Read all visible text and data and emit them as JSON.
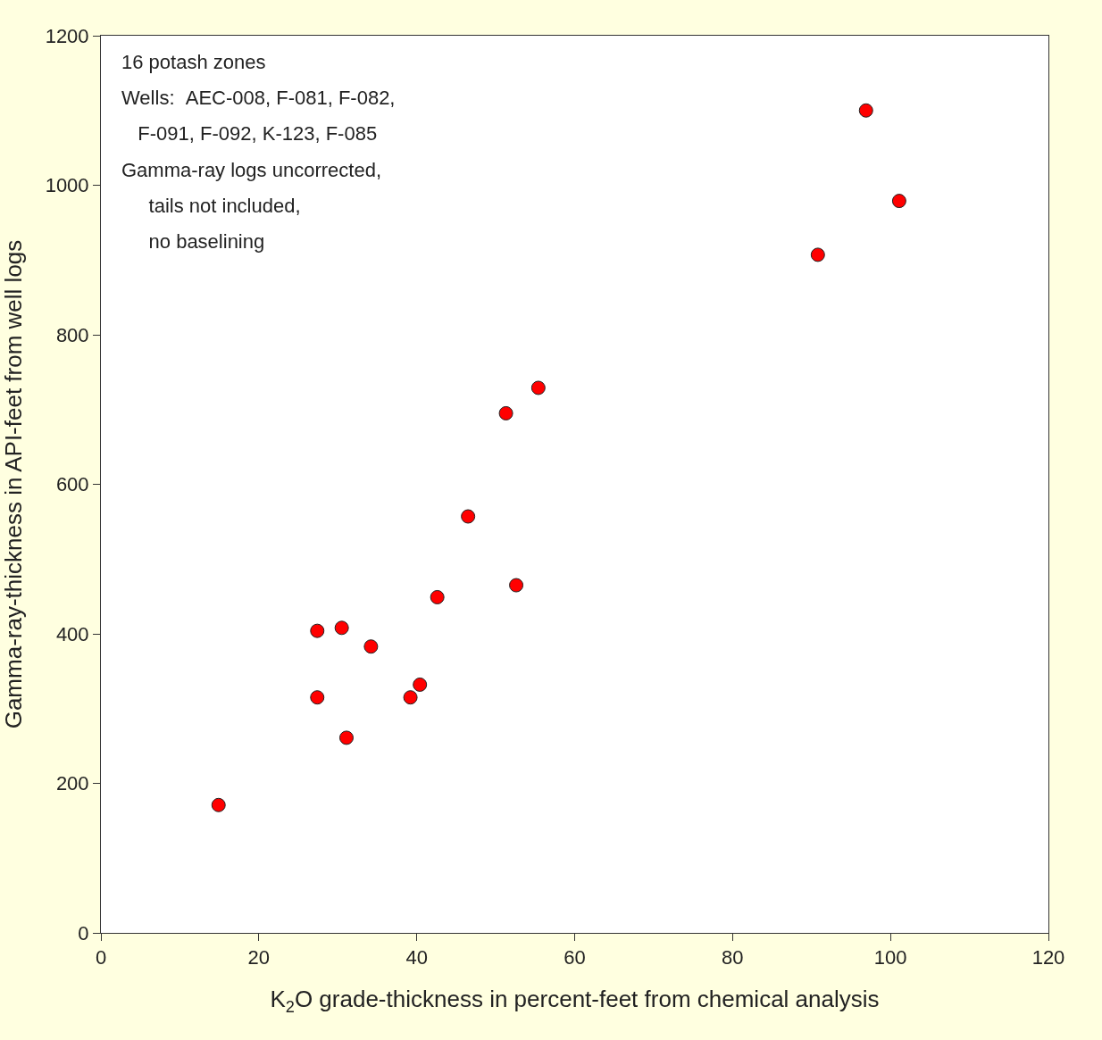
{
  "chart_data": {
    "type": "scatter",
    "xlabel": "K$_{2}$O grade-thickness in percent-feet from chemical analysis",
    "ylabel": "Gamma-ray-thickness in API-feet from well logs",
    "annotations": [
      "16 potash zones",
      "Wells:  AEC-008, F-081, F-082,",
      "   F-091, F-092, K-123, F-085",
      "Gamma-ray logs uncorrected,",
      "     tails not included,",
      "     no baselining"
    ],
    "x": [
      14.9,
      27.4,
      27.4,
      30.5,
      31.1,
      34.2,
      39.2,
      40.4,
      42.6,
      46.5,
      51.3,
      52.6,
      55.4,
      90.8,
      96.9,
      101.1
    ],
    "values": [
      171,
      404,
      315,
      408,
      261,
      383,
      315,
      332,
      449,
      557,
      695,
      465,
      729,
      907,
      1100,
      979
    ],
    "color": "#ff0000",
    "marker": "circle",
    "xlim": [
      0,
      120
    ],
    "xticks": [
      0,
      20,
      40,
      60,
      80,
      100,
      120
    ],
    "ylim": [
      0,
      1200
    ],
    "yticks": [
      0,
      200,
      400,
      600,
      800,
      1000,
      1200
    ],
    "legend": false
  }
}
